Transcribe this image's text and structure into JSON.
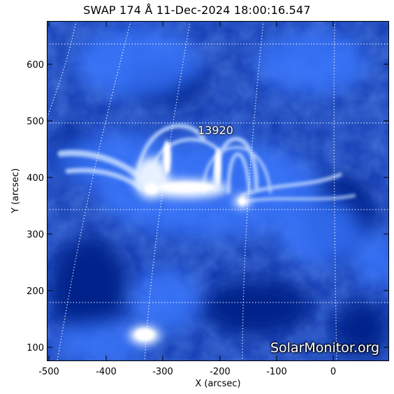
{
  "title": "SWAP 174 Å 11-Dec-2024 18:00:16.547",
  "active_region": "13920",
  "watermark": "SolarMonitor.org",
  "x_axis": {
    "label": "X (arcsec)",
    "ticks": [
      "-500",
      "-400",
      "-300",
      "-200",
      "-100",
      "0"
    ]
  },
  "y_axis": {
    "label": "Y (arcsec)",
    "ticks": [
      "100",
      "200",
      "300",
      "400",
      "500",
      "600"
    ]
  },
  "colors": {
    "background": "#0a2a9a",
    "bright": "#e8f2ff",
    "grid": "#ffffff"
  }
}
